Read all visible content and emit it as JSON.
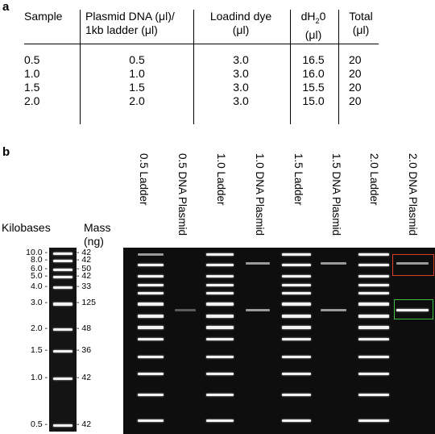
{
  "panel_a": {
    "label": "a",
    "headers": [
      {
        "lines": [
          "Sample",
          ""
        ]
      },
      {
        "lines": [
          "Plasmid DNA (μl)/",
          "1kb ladder (μl)"
        ]
      },
      {
        "lines": [
          "Loadind dye",
          "(μl)"
        ]
      },
      {
        "lines": [
          "dH",
          "(μl)"
        ],
        "subscript": "2",
        "suffix": "0"
      },
      {
        "lines": [
          "Total",
          "(μl)"
        ]
      }
    ],
    "rows": [
      [
        "0.5",
        "0.5",
        "3.0",
        "16.5",
        "20"
      ],
      [
        "1.0",
        "1.0",
        "3.0",
        "16.0",
        "20"
      ],
      [
        "1.5",
        "1.5",
        "3.0",
        "15.5",
        "20"
      ],
      [
        "2.0",
        "2.0",
        "3.0",
        "15.0",
        "20"
      ]
    ]
  },
  "panel_b": {
    "label": "b",
    "kilobases_label": "Kilobases",
    "mass_label_1": "Mass",
    "mass_label_2": "(ng)",
    "lanes": [
      "0.5 Ladder",
      "0.5 DNA Plasmid",
      "1.0 Ladder",
      "1.0 DNA Plasmid",
      "1.5 Ladder",
      "1.5 DNA Plasmid",
      "2.0 Ladder",
      "2.0 DNA Plasmid"
    ],
    "ladder_kb": [
      "10.0",
      "8.0",
      "6.0",
      "5.0",
      "4.0",
      "3.0",
      "2.0",
      "1.5",
      "1.0",
      "0.5"
    ],
    "ladder_mass_ng": [
      "42",
      "42",
      "50",
      "42",
      "33",
      "125",
      "48",
      "36",
      "42",
      "42"
    ],
    "highlight_colors": {
      "supercoiled_upper": "#e0402a",
      "lower": "#3fbf3f"
    }
  }
}
